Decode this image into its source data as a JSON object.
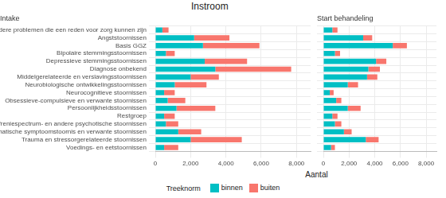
{
  "title": "Instroom",
  "x_label": "Aantal",
  "legend_title": "Treeknorm",
  "legend": "bottom",
  "chart_data": [
    {
      "type": "bar",
      "title": "Intake",
      "orientation": "horizontal",
      "stacked": true,
      "grid": true,
      "categories": [
        "Andere problemen die een reden voor zorg kunnen zijn",
        "Angststoornissen",
        "Basis GGZ",
        "Bipolaire stemmingsstoornissen",
        "Depressieve stemmingsstoornissen",
        "Diagnose onbekend",
        "Middelgerelateerde en verslavingsstoornissen",
        "Neurobiologische ontwikkelingsstoornissen",
        "Neurocognitieve stoornissen",
        "Obsessieve-compulsieve en verwante stoornissen",
        "Persoonlijkheidsstoornissen",
        "Restgroep",
        "Schizofreniespectrum- en andere psychotische stoornissen",
        "Somatische symptoomstoornis en verwante stoornissen",
        "Trauma en stressorgerelateerde stoornissen",
        "Voedings- en eetstoornissen"
      ],
      "series": [
        {
          "name": "binnen",
          "color": "#00BFC4",
          "values": [
            400,
            2200,
            2700,
            600,
            2800,
            3400,
            2000,
            1100,
            500,
            700,
            1200,
            500,
            600,
            1300,
            2000,
            500
          ]
        },
        {
          "name": "buiten",
          "color": "#F8766D",
          "values": [
            350,
            2000,
            3200,
            500,
            2400,
            4300,
            1600,
            1800,
            600,
            1000,
            2200,
            600,
            700,
            1300,
            2900,
            800
          ]
        }
      ],
      "xlim": [
        0,
        8800
      ],
      "xticks": [
        0,
        2000,
        4000,
        6000,
        8000
      ]
    },
    {
      "type": "bar",
      "title": "Start behandeling",
      "orientation": "horizontal",
      "stacked": true,
      "grid": true,
      "tick_labels": "x",
      "categories": [
        "Andere problemen die een reden voor zorg kunnen zijn",
        "Angststoornissen",
        "Basis GGZ",
        "Bipolaire stemmingsstoornissen",
        "Depressieve stemmingsstoornissen",
        "Diagnose onbekend",
        "Middelgerelateerde en verslavingsstoornissen",
        "Neurobiologische ontwikkelingsstoornissen",
        "Neurocognitieve stoornissen",
        "Obsessieve-compulsieve en verwante stoornissen",
        "Persoonlijkheidsstoornissen",
        "Restgroep",
        "Schizofreniespectrum- en andere psychotische stoornissen",
        "Somatische symptoomstoornis en verwante stoornissen",
        "Trauma en stressorgerelateerde stoornissen",
        "Voedings- en eetstoornissen"
      ],
      "series": [
        {
          "name": "binnen",
          "color": "#00BFC4",
          "values": [
            700,
            3100,
            5400,
            900,
            4100,
            3500,
            3400,
            1900,
            500,
            1000,
            1900,
            700,
            900,
            1600,
            3300,
            600
          ]
        },
        {
          "name": "buiten",
          "color": "#F8766D",
          "values": [
            400,
            700,
            1100,
            400,
            800,
            900,
            800,
            800,
            300,
            400,
            1000,
            400,
            500,
            600,
            1000,
            300
          ]
        }
      ],
      "xlim": [
        0,
        8800
      ],
      "xticks": [
        0,
        2000,
        4000,
        6000,
        8000
      ]
    }
  ]
}
